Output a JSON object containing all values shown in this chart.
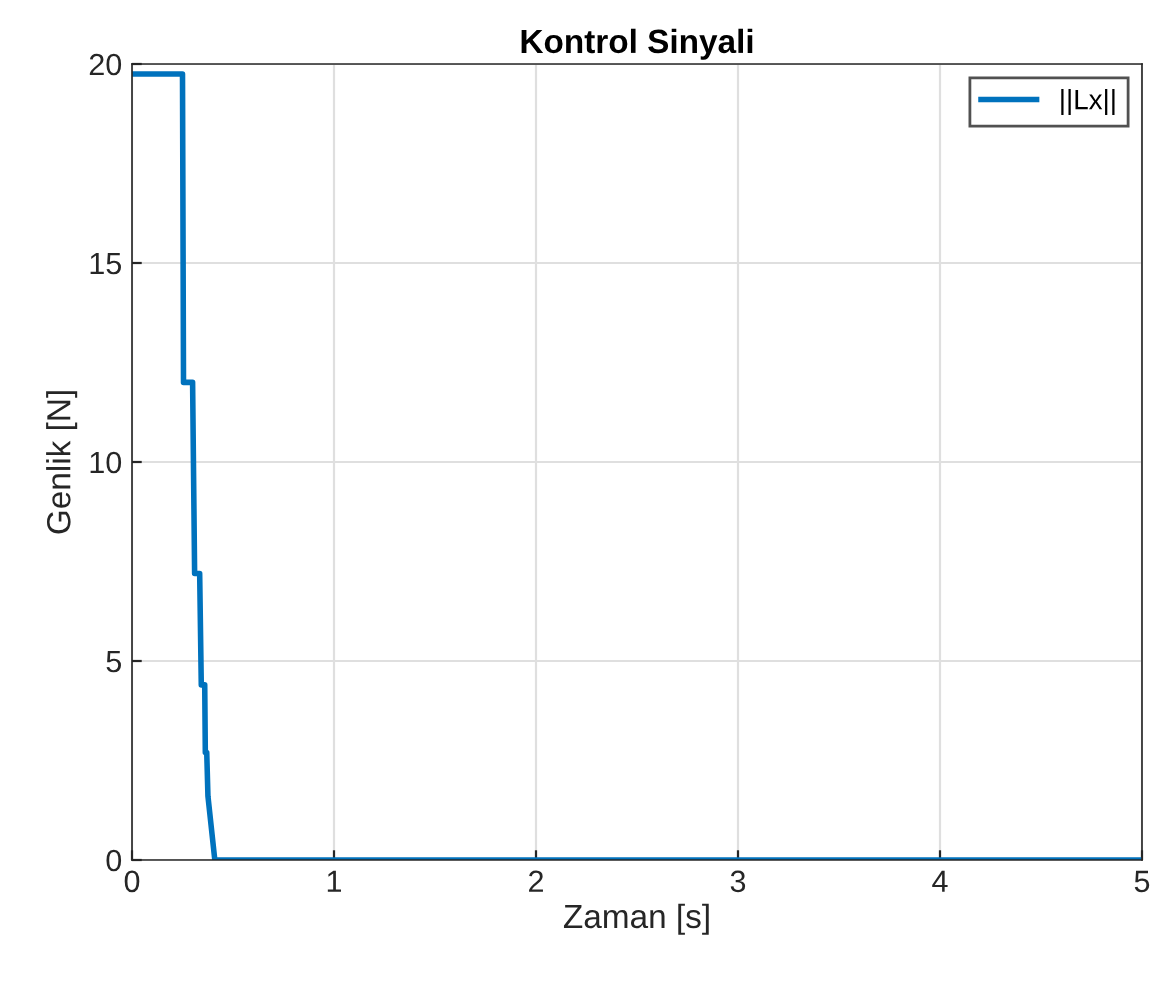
{
  "chart_data": {
    "type": "line",
    "title": "Kontrol Sinyali",
    "xlabel": "Zaman [s]",
    "ylabel": "Genlik [N]",
    "xlim": [
      0,
      5
    ],
    "xticks": [
      0,
      1,
      2,
      3,
      4,
      5
    ],
    "ylim": [
      0,
      20
    ],
    "yticks": [
      0,
      5,
      10,
      15,
      20
    ],
    "grid": true,
    "legend": "top right",
    "marker": "none",
    "line_style": "solid",
    "series": [
      {
        "name": "||Lx||",
        "color": "#0072bd",
        "x": [
          0,
          0.25,
          0.255,
          0.3,
          0.31,
          0.335,
          0.343,
          0.36,
          0.363,
          0.37,
          0.376,
          0.41,
          5
        ],
        "values": [
          19.75,
          19.75,
          12.0,
          12.0,
          7.2,
          7.2,
          4.4,
          4.4,
          2.7,
          2.7,
          1.6,
          0,
          0
        ]
      }
    ]
  }
}
